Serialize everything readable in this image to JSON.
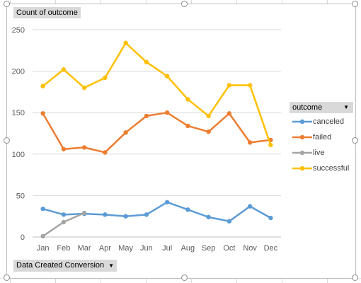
{
  "chart_data": {
    "type": "line",
    "title": "",
    "xlabel": "",
    "ylabel": "",
    "categories": [
      "Jan",
      "Feb",
      "Mar",
      "Apr",
      "May",
      "Jun",
      "Jul",
      "Aug",
      "Sep",
      "Oct",
      "Nov",
      "Dec"
    ],
    "ylim": [
      0,
      250
    ],
    "yticks": [
      0,
      50,
      100,
      150,
      200,
      250
    ],
    "grid": true,
    "legend_position": "right",
    "series": [
      {
        "name": "canceled",
        "color": "#5b9bd5",
        "values": [
          34,
          27,
          28,
          27,
          25,
          27,
          42,
          33,
          24,
          19,
          37,
          23
        ]
      },
      {
        "name": "failed",
        "color": "#ed7d31",
        "values": [
          149,
          106,
          108,
          102,
          126,
          146,
          150,
          134,
          127,
          149,
          114,
          117
        ]
      },
      {
        "name": "live",
        "color": "#a5a5a5",
        "values": [
          1,
          18,
          29,
          null,
          null,
          null,
          null,
          null,
          null,
          null,
          null,
          null
        ]
      },
      {
        "name": "successful",
        "color": "#ffc000",
        "values": [
          182,
          202,
          180,
          192,
          234,
          211,
          194,
          166,
          146,
          183,
          183,
          111
        ]
      }
    ]
  },
  "pivot": {
    "value_field_label": "Count of outcome",
    "legend_field_label": "outcome",
    "axis_field_label": "Data Created Conversion"
  }
}
